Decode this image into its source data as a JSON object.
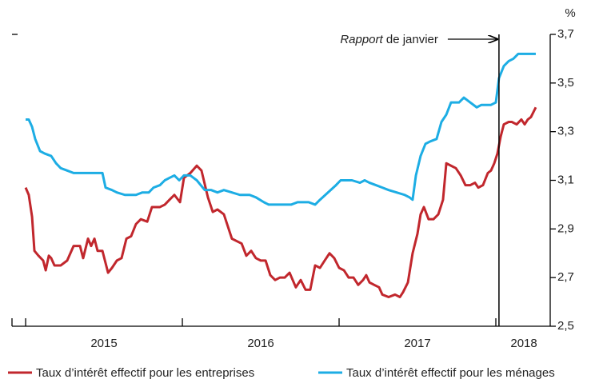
{
  "chart_data": {
    "type": "line",
    "y_unit": "%",
    "xlim": [
      2014.913,
      2018.347
    ],
    "xticks": [
      2015,
      2016,
      2017,
      2018
    ],
    "xlabels": [
      {
        "value": 2015.5,
        "label": "2015"
      },
      {
        "value": 2016.5,
        "label": "2016"
      },
      {
        "value": 2017.5,
        "label": "2017"
      },
      {
        "value": 2018.179,
        "label": "2018"
      }
    ],
    "ylim": [
      2.5,
      3.7
    ],
    "yticks": [
      {
        "value": 2.5,
        "label": "2,5"
      },
      {
        "value": 2.7,
        "label": "2,7"
      },
      {
        "value": 2.9,
        "label": "2,9"
      },
      {
        "value": 3.1,
        "label": "3,1"
      },
      {
        "value": 3.3,
        "label": "3,3"
      },
      {
        "value": 3.5,
        "label": "3,5"
      },
      {
        "value": 3.7,
        "label": "3,7"
      }
    ],
    "annotation": {
      "x": 2018.02,
      "italic": "Rapport",
      "text": "de janvier"
    },
    "series": [
      {
        "name": "Taux d’intérêt effectif pour les entreprises",
        "color": "#c1272d",
        "x": [
          2015.0,
          2015.02,
          2015.041,
          2015.056,
          2015.082,
          2015.112,
          2015.128,
          2015.148,
          2015.163,
          2015.184,
          2015.224,
          2015.265,
          2015.306,
          2015.347,
          2015.367,
          2015.398,
          2015.418,
          2015.439,
          2015.459,
          2015.49,
          2015.526,
          2015.551,
          2015.582,
          2015.612,
          2015.643,
          2015.673,
          2015.704,
          2015.735,
          2015.776,
          2015.806,
          2015.857,
          2015.888,
          2015.918,
          2015.949,
          2015.985,
          2016.01,
          2016.051,
          2016.092,
          2016.122,
          2016.163,
          2016.194,
          2016.224,
          2016.265,
          2016.316,
          2016.347,
          2016.378,
          2016.408,
          2016.439,
          2016.469,
          2016.5,
          2016.531,
          2016.561,
          2016.592,
          2016.622,
          2016.653,
          2016.684,
          2016.704,
          2016.724,
          2016.755,
          2016.786,
          2016.816,
          2016.847,
          2016.878,
          2016.908,
          2016.939,
          2016.969,
          2017.0,
          2017.031,
          2017.061,
          2017.092,
          2017.122,
          2017.153,
          2017.173,
          2017.194,
          2017.224,
          2017.255,
          2017.276,
          2017.316,
          2017.357,
          2017.388,
          2017.408,
          2017.439,
          2017.469,
          2017.5,
          2017.52,
          2017.541,
          2017.571,
          2017.602,
          2017.633,
          2017.663,
          2017.684,
          2017.714,
          2017.745,
          2017.776,
          2017.806,
          2017.837,
          2017.867,
          2017.888,
          2017.918,
          2017.949,
          2017.969,
          2017.99,
          2018.01,
          2018.031,
          2018.051,
          2018.082,
          2018.102,
          2018.133,
          2018.163,
          2018.184,
          2018.204,
          2018.224,
          2018.255
        ],
        "values": [
          3.07,
          3.04,
          2.95,
          2.81,
          2.79,
          2.77,
          2.73,
          2.79,
          2.78,
          2.75,
          2.75,
          2.77,
          2.83,
          2.83,
          2.78,
          2.86,
          2.83,
          2.86,
          2.81,
          2.81,
          2.72,
          2.74,
          2.77,
          2.78,
          2.86,
          2.87,
          2.92,
          2.94,
          2.93,
          2.99,
          2.99,
          3.0,
          3.02,
          3.04,
          3.01,
          3.11,
          3.13,
          3.16,
          3.14,
          3.03,
          2.97,
          2.98,
          2.96,
          2.86,
          2.85,
          2.84,
          2.79,
          2.81,
          2.78,
          2.77,
          2.77,
          2.71,
          2.69,
          2.7,
          2.7,
          2.72,
          2.69,
          2.66,
          2.69,
          2.65,
          2.65,
          2.75,
          2.74,
          2.77,
          2.8,
          2.78,
          2.74,
          2.73,
          2.7,
          2.7,
          2.67,
          2.69,
          2.71,
          2.68,
          2.67,
          2.66,
          2.63,
          2.62,
          2.63,
          2.62,
          2.64,
          2.68,
          2.8,
          2.88,
          2.96,
          2.99,
          2.94,
          2.94,
          2.96,
          3.02,
          3.17,
          3.16,
          3.15,
          3.12,
          3.08,
          3.08,
          3.09,
          3.07,
          3.08,
          3.13,
          3.14,
          3.17,
          3.21,
          3.28,
          3.33,
          3.34,
          3.34,
          3.33,
          3.35,
          3.33,
          3.35,
          3.36,
          3.4
        ]
      },
      {
        "name": "Taux d’intérêt effectif pour les ménages",
        "color": "#1dade4",
        "x": [
          2015.0,
          2015.02,
          2015.041,
          2015.061,
          2015.092,
          2015.122,
          2015.163,
          2015.194,
          2015.224,
          2015.265,
          2015.306,
          2015.347,
          2015.398,
          2015.449,
          2015.49,
          2015.51,
          2015.551,
          2015.582,
          2015.633,
          2015.704,
          2015.745,
          2015.786,
          2015.816,
          2015.857,
          2015.888,
          2015.918,
          2015.949,
          2015.98,
          2016.01,
          2016.051,
          2016.092,
          2016.143,
          2016.184,
          2016.224,
          2016.265,
          2016.316,
          2016.367,
          2016.429,
          2016.469,
          2016.52,
          2016.551,
          2016.622,
          2016.694,
          2016.735,
          2016.806,
          2016.847,
          2016.878,
          2016.929,
          2016.98,
          2017.01,
          2017.082,
          2017.133,
          2017.163,
          2017.194,
          2017.235,
          2017.276,
          2017.316,
          2017.367,
          2017.418,
          2017.449,
          2017.469,
          2017.49,
          2017.52,
          2017.551,
          2017.582,
          2017.622,
          2017.653,
          2017.684,
          2017.714,
          2017.765,
          2017.796,
          2017.837,
          2017.878,
          2017.908,
          2017.969,
          2018.0,
          2018.02,
          2018.051,
          2018.082,
          2018.112,
          2018.143,
          2018.255
        ],
        "values": [
          3.35,
          3.35,
          3.32,
          3.27,
          3.22,
          3.21,
          3.2,
          3.17,
          3.15,
          3.14,
          3.13,
          3.13,
          3.13,
          3.13,
          3.13,
          3.07,
          3.06,
          3.05,
          3.04,
          3.04,
          3.05,
          3.05,
          3.07,
          3.08,
          3.1,
          3.11,
          3.12,
          3.1,
          3.12,
          3.12,
          3.1,
          3.06,
          3.06,
          3.05,
          3.06,
          3.05,
          3.04,
          3.04,
          3.03,
          3.01,
          3.0,
          3.0,
          3.0,
          3.01,
          3.01,
          3.0,
          3.02,
          3.05,
          3.08,
          3.1,
          3.1,
          3.09,
          3.1,
          3.09,
          3.08,
          3.07,
          3.06,
          3.05,
          3.04,
          3.03,
          3.02,
          3.12,
          3.2,
          3.25,
          3.26,
          3.27,
          3.34,
          3.37,
          3.42,
          3.42,
          3.44,
          3.42,
          3.4,
          3.41,
          3.41,
          3.42,
          3.52,
          3.57,
          3.59,
          3.6,
          3.62,
          3.62
        ]
      }
    ]
  }
}
